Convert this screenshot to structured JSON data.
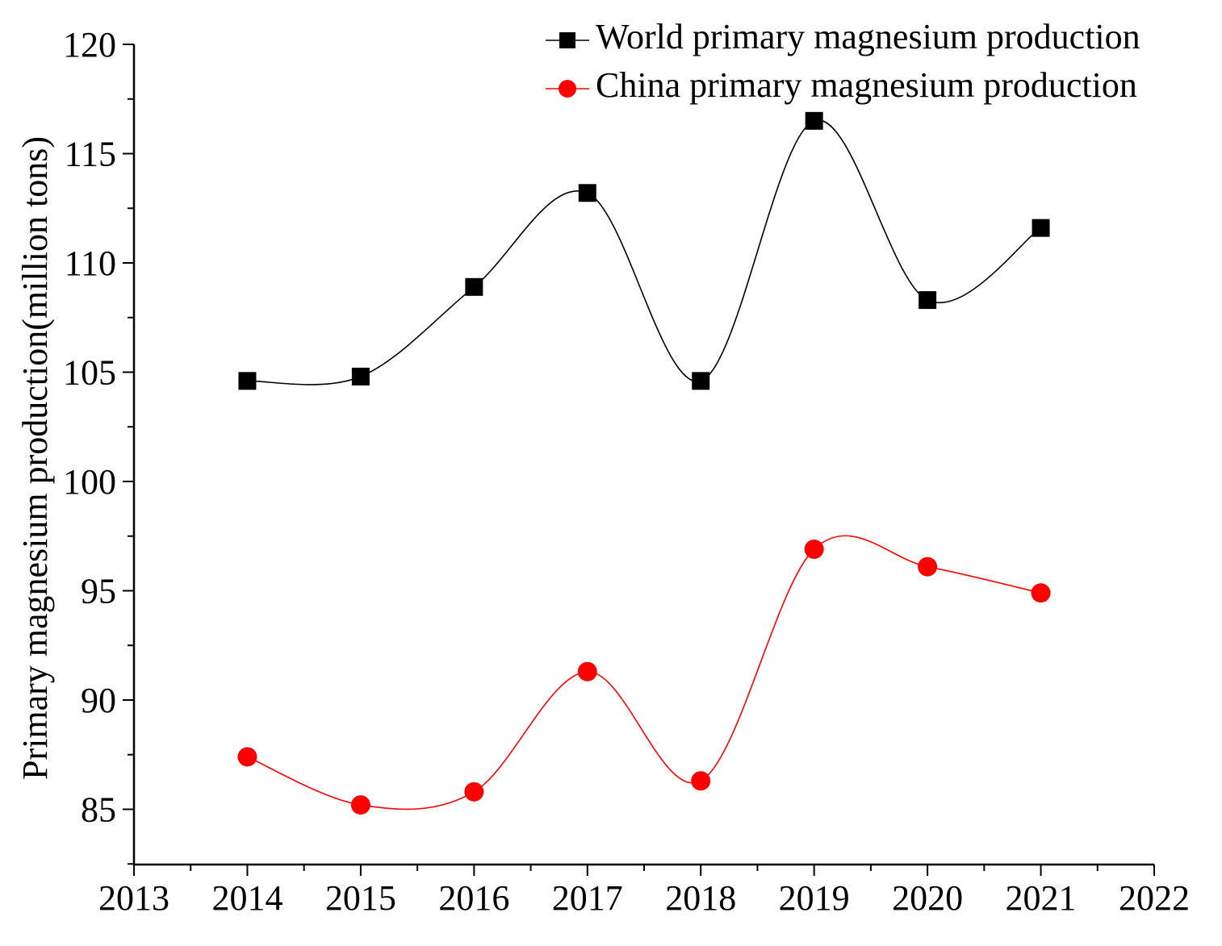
{
  "chart_data": {
    "type": "line",
    "title": "",
    "xlabel": "",
    "ylabel": "Primary magnesium production(million tons)",
    "xlim": [
      2013,
      2022
    ],
    "ylim": [
      81,
      120
    ],
    "x_ticks": [
      "2013",
      "2014",
      "2015",
      "2016",
      "2017",
      "2018",
      "2019",
      "2020",
      "2021",
      "2022"
    ],
    "y_ticks": [
      "85",
      "90",
      "95",
      "100",
      "105",
      "110",
      "115",
      "120"
    ],
    "x": [
      2014,
      2015,
      2016,
      2017,
      2018,
      2019,
      2020,
      2021
    ],
    "series": [
      {
        "name": "World primary magnesium production",
        "marker": "square",
        "color": "#000000",
        "values": [
          104.6,
          104.8,
          108.9,
          113.2,
          104.6,
          116.5,
          108.3,
          111.6
        ]
      },
      {
        "name": "China primary magnesium production",
        "marker": "circle",
        "color": "#ff0000",
        "values": [
          87.4,
          85.2,
          85.8,
          91.3,
          86.3,
          96.9,
          96.1,
          94.9
        ]
      }
    ],
    "legend_position": "top-right",
    "grid": false
  }
}
